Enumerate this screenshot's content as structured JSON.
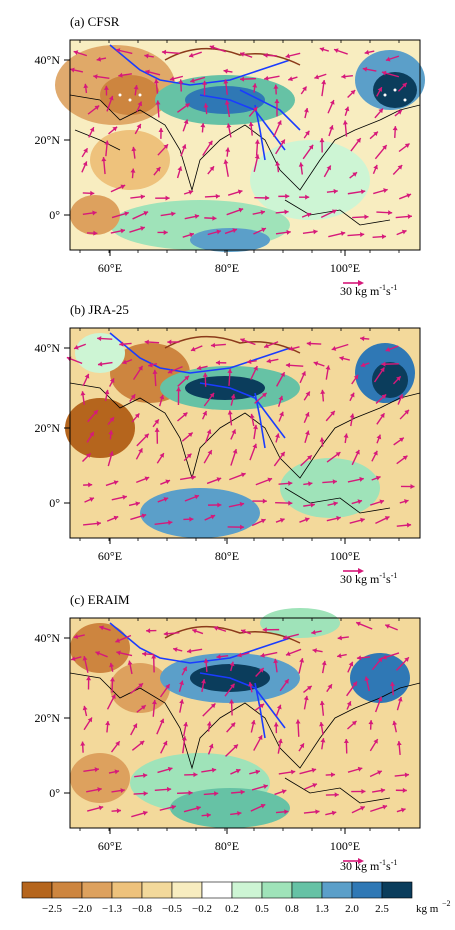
{
  "panels": [
    {
      "label": "(a)  CFSR"
    },
    {
      "label": "(b)  JRA-25"
    },
    {
      "label": "(c)  ERAIM"
    }
  ],
  "axes": {
    "lat_ticks": [
      "40°N",
      "20°N",
      "0°"
    ],
    "lon_ticks": [
      "60°E",
      "80°E",
      "100°E"
    ]
  },
  "reference_vector": {
    "value": "30 kg m",
    "exp1": "-1",
    "mid": "s",
    "exp2": "-1"
  },
  "colorbar": {
    "levels": [
      "−2.5",
      "−2.0",
      "−1.3",
      "−0.8",
      "−0.5",
      "−0.2",
      "0.2",
      "0.5",
      "0.8",
      "1.3",
      "2.0",
      "2.5"
    ],
    "unit": "kg m",
    "unit_exp": "−2",
    "colors": [
      "#b5651d",
      "#cd853f",
      "#dda15e",
      "#eec27c",
      "#f3d99b",
      "#f8edc0",
      "#ffffff",
      "#cdf5d4",
      "#9fe3b9",
      "#66c2a5",
      "#5b9fc9",
      "#2f78b5",
      "#0b3d5c"
    ]
  },
  "colors": {
    "vector": "#d6197a",
    "river": "#1a3cff",
    "contour": "#8b3a1a",
    "coast": "#000000"
  }
}
